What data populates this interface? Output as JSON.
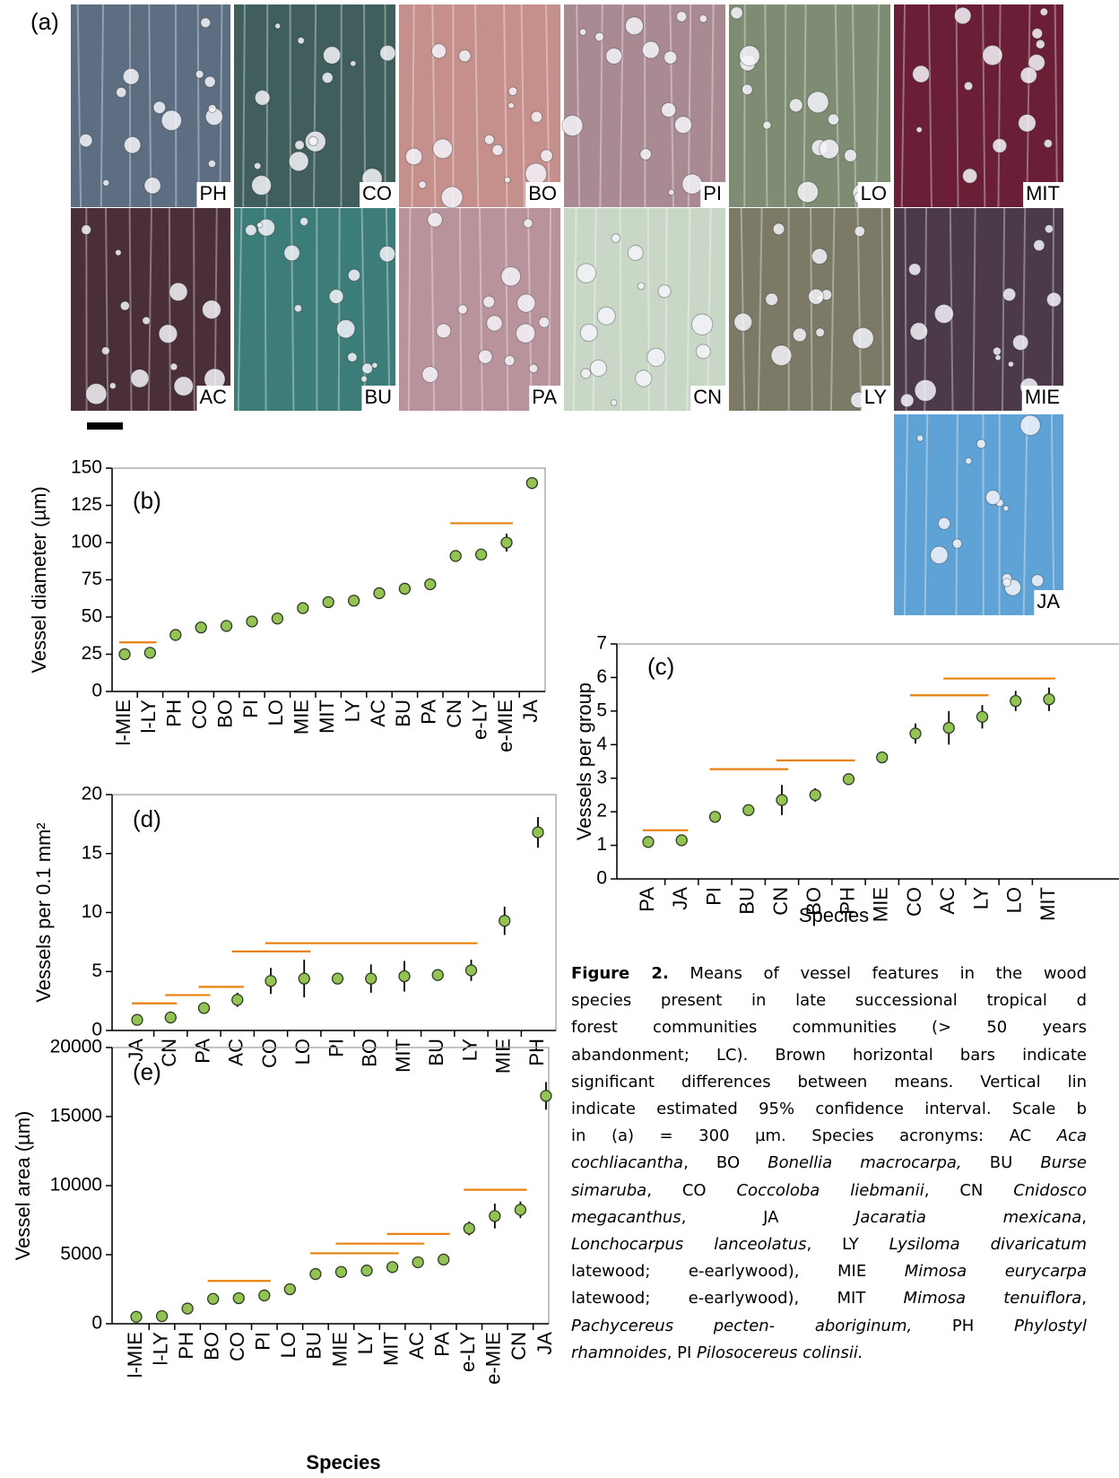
{
  "panel_a": {
    "label": "(a)",
    "tiles": [
      "PH",
      "CO",
      "BO",
      "PI",
      "LO",
      "MIT",
      "AC",
      "BU",
      "PA",
      "CN",
      "LY",
      "MIE",
      "JA"
    ]
  },
  "chart_data": [
    {
      "type": "errorbar",
      "panel_label": "(b)",
      "y_label": "Vessel diameter (µm)",
      "categories": [
        "l-MIE",
        "l-LY",
        "PH",
        "CO",
        "BO",
        "PI",
        "LO",
        "MIE",
        "MIT",
        "LY",
        "AC",
        "BU",
        "PA",
        "CN",
        "e-LY",
        "e-MIE",
        "JA"
      ],
      "values": [
        25,
        26,
        38,
        43,
        44,
        47,
        49,
        56,
        60,
        61,
        66,
        69,
        72,
        91,
        92,
        100,
        140
      ],
      "errors": [
        2,
        2,
        2,
        2,
        2,
        2,
        2,
        2,
        2,
        2,
        2,
        2,
        2,
        3,
        3,
        6,
        4
      ],
      "ylim": [
        0,
        150
      ],
      "yticks": [
        0,
        25,
        50,
        75,
        100,
        125,
        150
      ],
      "color": "#92c353",
      "error_color": "#000000",
      "sig_color": "#e8820e",
      "significance_bars": [
        {
          "from": "l-MIE",
          "to": "l-LY",
          "value": 33
        },
        {
          "from": "CN",
          "to": "e-MIE",
          "value": 113
        }
      ]
    },
    {
      "type": "errorbar",
      "panel_label": "(c)",
      "y_label": "Vessels per group",
      "x_label": "Species",
      "categories": [
        "PA",
        "JA",
        "PI",
        "BU",
        "CN",
        "BO",
        "PH",
        "MIE",
        "CO",
        "AC",
        "LY",
        "LO",
        "MIT"
      ],
      "values": [
        1.1,
        1.15,
        1.85,
        2.05,
        2.35,
        2.5,
        2.97,
        3.62,
        4.33,
        4.5,
        4.83,
        5.3,
        5.35
      ],
      "errors": [
        0.1,
        0.1,
        0.08,
        0.15,
        0.45,
        0.2,
        0.15,
        0.1,
        0.3,
        0.5,
        0.35,
        0.3,
        0.35
      ],
      "ylim": [
        0,
        7
      ],
      "yticks": [
        0,
        1,
        2,
        3,
        4,
        5,
        6,
        7
      ],
      "color": "#92c353",
      "error_color": "#000000",
      "sig_color": "#e8820e",
      "significance_bars": [
        {
          "from": "PA",
          "to": "JA",
          "value": 1.45
        },
        {
          "from": "PI",
          "to": "CN",
          "value": 3.27
        },
        {
          "from": "CN",
          "to": "PH",
          "value": 3.53
        },
        {
          "from": "CO",
          "to": "LY",
          "value": 5.47
        },
        {
          "from": "AC",
          "to": "MIT",
          "value": 5.97
        }
      ]
    },
    {
      "type": "errorbar",
      "panel_label": "(d)",
      "y_label": "Vessels per 0.1 mm²",
      "categories": [
        "JA",
        "CN",
        "PA",
        "AC",
        "CO",
        "LO",
        "PI",
        "BO",
        "MIT",
        "BU",
        "LY",
        "MIE",
        "PH"
      ],
      "values": [
        0.9,
        1.1,
        1.9,
        2.6,
        4.2,
        4.4,
        4.4,
        4.4,
        4.6,
        4.7,
        5.1,
        9.3,
        16.8
      ],
      "errors": [
        0.2,
        0.5,
        0.3,
        0.6,
        1.1,
        1.6,
        0.4,
        1.2,
        1.3,
        0.4,
        0.9,
        1.2,
        1.3
      ],
      "ylim": [
        0,
        20
      ],
      "yticks": [
        0,
        5,
        10,
        15,
        20
      ],
      "color": "#92c353",
      "error_color": "#000000",
      "sig_color": "#e8820e",
      "significance_bars": [
        {
          "from": "JA",
          "to": "CN",
          "value": 2.3
        },
        {
          "from": "CN",
          "to": "PA",
          "value": 3.0
        },
        {
          "from": "PA",
          "to": "AC",
          "value": 3.7
        },
        {
          "from": "AC",
          "to": "LO",
          "value": 6.7
        },
        {
          "from": "CO",
          "to": "LY",
          "value": 7.4
        }
      ]
    },
    {
      "type": "errorbar",
      "panel_label": "(e)",
      "y_label": "Vessel area (µm)",
      "x_label": "Species",
      "categories": [
        "l-MIE",
        "l-LY",
        "PH",
        "BO",
        "CO",
        "PI",
        "LO",
        "BU",
        "MIE",
        "LY",
        "MIT",
        "AC",
        "PA",
        "e-LY",
        "e-MIE",
        "CN",
        "JA"
      ],
      "values": [
        500,
        550,
        1100,
        1800,
        1850,
        2050,
        2500,
        3600,
        3750,
        3850,
        4100,
        4450,
        4650,
        6900,
        7800,
        8250,
        16500
      ],
      "errors": [
        150,
        150,
        150,
        200,
        200,
        250,
        200,
        250,
        250,
        250,
        300,
        250,
        300,
        500,
        900,
        600,
        1000
      ],
      "ylim": [
        0,
        20000
      ],
      "yticks": [
        0,
        5000,
        10000,
        15000,
        20000
      ],
      "color": "#92c353",
      "error_color": "#000000",
      "sig_color": "#e8820e",
      "significance_bars": [
        {
          "from": "BO",
          "to": "PI",
          "value": 3100
        },
        {
          "from": "BU",
          "to": "MIT",
          "value": 5100
        },
        {
          "from": "MIE",
          "to": "AC",
          "value": 5800
        },
        {
          "from": "MIT",
          "to": "PA",
          "value": 6500
        },
        {
          "from": "e-LY",
          "to": "CN",
          "value": 9700
        }
      ]
    }
  ],
  "caption": {
    "label": "Figure 2.",
    "lines": [
      [
        {
          "text": " Means of vessel features in the wood",
          "italic": false
        }
      ],
      [
        {
          "text": "species present in late successional tropical d",
          "italic": false
        }
      ],
      [
        {
          "text": "forest communities communities (> 50 years",
          "italic": false
        }
      ],
      [
        {
          "text": "abandonment; LC). Brown horizontal bars indicate",
          "italic": false
        }
      ],
      [
        {
          "text": "significant differences between means. Vertical lin",
          "italic": false
        }
      ],
      [
        {
          "text": "indicate estimated 95% confidence interval. Scale b",
          "italic": false
        }
      ],
      [
        {
          "text": "in (a) = 300 µm. Species acronyms: AC ",
          "italic": false
        },
        {
          "text": "Aca",
          "italic": true
        }
      ],
      [
        {
          "text": "cochliacantha",
          "italic": true
        },
        {
          "text": ", BO ",
          "italic": false
        },
        {
          "text": "Bonellia macrocarpa,",
          "italic": true
        },
        {
          "text": " BU ",
          "italic": false
        },
        {
          "text": "Burse",
          "italic": true
        }
      ],
      [
        {
          "text": "simaruba",
          "italic": true
        },
        {
          "text": ", CO ",
          "italic": false
        },
        {
          "text": "Coccoloba liebmanii",
          "italic": true
        },
        {
          "text": ", CN ",
          "italic": false
        },
        {
          "text": "Cnidosco",
          "italic": true
        }
      ],
      [
        {
          "text": "megacanthus",
          "italic": true
        },
        {
          "text": ", JA ",
          "italic": false
        },
        {
          "text": "Jacaratia mexicana",
          "italic": true
        },
        {
          "text": ",",
          "italic": false
        }
      ],
      [
        {
          "text": "Lonchocarpus lanceolatus",
          "italic": true
        },
        {
          "text": ", LY ",
          "italic": false
        },
        {
          "text": "Lysiloma divaricatum",
          "italic": true
        }
      ],
      [
        {
          "text": "latewood; e-earlywood), MIE ",
          "italic": false
        },
        {
          "text": "Mimosa eurycarpa",
          "italic": true
        }
      ],
      [
        {
          "text": "latewood; e-earlywood), MIT ",
          "italic": false
        },
        {
          "text": "Mimosa tenuiflora",
          "italic": true
        },
        {
          "text": ",",
          "italic": false
        }
      ],
      [
        {
          "text": "Pachycereus pecten- aboriginum,",
          "italic": true
        },
        {
          "text": " PH ",
          "italic": false
        },
        {
          "text": "Phylostyl",
          "italic": true
        }
      ],
      [
        {
          "text": "rhamnoides",
          "italic": true
        },
        {
          "text": ", PI ",
          "italic": false
        },
        {
          "text": "Pilosocereus colinsii.",
          "italic": true
        }
      ]
    ]
  }
}
